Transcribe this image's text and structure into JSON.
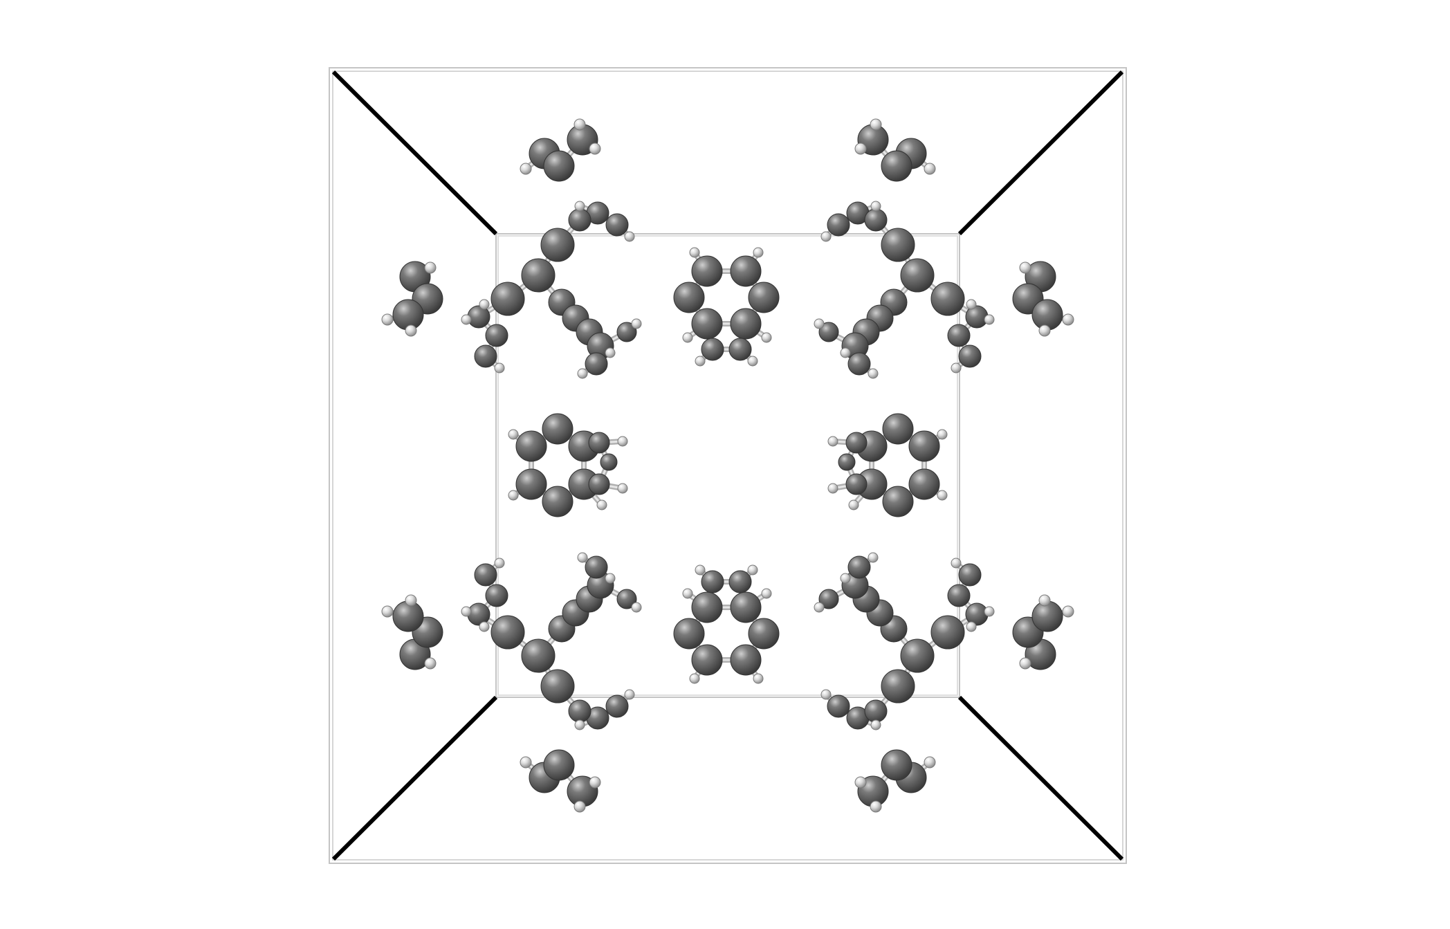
{
  "scene": {
    "type": "molecular-crystal-cell-perspective",
    "background": "#ffffff",
    "colors": {
      "carbon": "#5a5a5a",
      "carbon_highlight": "#bdbdbd",
      "carbon_stroke": "#3a3a3a",
      "hydrogen": "#d8d8d8",
      "hydrogen_stroke": "#8a8a8a",
      "bond": "#9a9a9a",
      "cell_edge_dark": "#000000",
      "cell_edge_light": "#bcbcbc"
    },
    "atom_types": [
      "carbon",
      "hydrogen"
    ],
    "motifs": {
      "naphthalene_rings_count": 4,
      "branched_chain_clusters_count": 4,
      "small_fragments_count": 8
    }
  }
}
